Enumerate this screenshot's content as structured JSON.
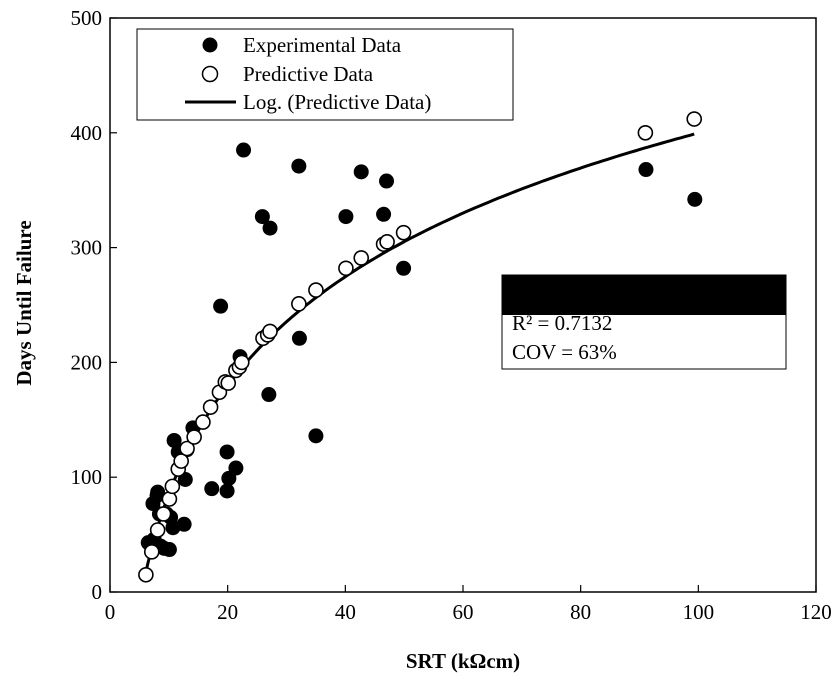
{
  "chart_data": {
    "type": "scatter",
    "xlabel": "SRT (kΩcm)",
    "ylabel": "Days Until Failure",
    "xlim": [
      0,
      120
    ],
    "ylim": [
      0,
      500
    ],
    "x_ticks": [
      0,
      20,
      40,
      60,
      80,
      100,
      120
    ],
    "y_ticks": [
      0,
      100,
      200,
      300,
      400,
      500
    ],
    "grid": false,
    "legend_position": "top-left",
    "series": [
      {
        "name": "Experimental Data",
        "marker": "filled-circle",
        "color": "#000000",
        "points": [
          [
            6.5,
            43
          ],
          [
            7.3,
            77
          ],
          [
            7.5,
            46
          ],
          [
            8.0,
            84
          ],
          [
            8.1,
            87
          ],
          [
            8.4,
            68
          ],
          [
            8.6,
            40
          ],
          [
            9.2,
            38
          ],
          [
            9.6,
            68
          ],
          [
            10.1,
            37
          ],
          [
            10.3,
            65
          ],
          [
            10.7,
            56
          ],
          [
            10.9,
            132
          ],
          [
            11.6,
            122
          ],
          [
            12.6,
            59
          ],
          [
            12.8,
            98
          ],
          [
            13.1,
            124
          ],
          [
            14.1,
            143
          ],
          [
            15.8,
            148
          ],
          [
            17.3,
            90
          ],
          [
            18.8,
            249
          ],
          [
            19.9,
            122
          ],
          [
            19.9,
            88
          ],
          [
            20.2,
            99
          ],
          [
            21.4,
            108
          ],
          [
            22.1,
            205
          ],
          [
            22.7,
            385
          ],
          [
            25.9,
            327
          ],
          [
            27.0,
            172
          ],
          [
            27.2,
            317
          ],
          [
            32.1,
            371
          ],
          [
            32.2,
            221
          ],
          [
            35.0,
            136
          ],
          [
            40.1,
            327
          ],
          [
            42.7,
            366
          ],
          [
            46.5,
            329
          ],
          [
            47.0,
            358
          ],
          [
            49.9,
            282
          ],
          [
            91.1,
            368
          ],
          [
            99.4,
            342
          ]
        ]
      },
      {
        "name": "Predictive Data",
        "marker": "open-circle",
        "color": "#000000",
        "points": [
          [
            6.1,
            15
          ],
          [
            7.1,
            35
          ],
          [
            8.1,
            54
          ],
          [
            9.1,
            68
          ],
          [
            10.1,
            81
          ],
          [
            10.6,
            92
          ],
          [
            11.6,
            107
          ],
          [
            12.1,
            114
          ],
          [
            13.1,
            125
          ],
          [
            14.3,
            135
          ],
          [
            15.8,
            148
          ],
          [
            17.1,
            161
          ],
          [
            18.6,
            174
          ],
          [
            19.6,
            183
          ],
          [
            20.1,
            182
          ],
          [
            21.4,
            193
          ],
          [
            22.0,
            196
          ],
          [
            22.4,
            200
          ],
          [
            26.0,
            221
          ],
          [
            26.8,
            224
          ],
          [
            27.2,
            227
          ],
          [
            32.1,
            251
          ],
          [
            35.0,
            263
          ],
          [
            40.1,
            282
          ],
          [
            42.7,
            291
          ],
          [
            46.5,
            303
          ],
          [
            47.1,
            305
          ],
          [
            49.9,
            313
          ],
          [
            91.0,
            400
          ],
          [
            99.3,
            412
          ]
        ]
      },
      {
        "name": "Log. (Predictive Data)",
        "kind": "trendline",
        "color": "#000000",
        "a": 136.55,
        "b": -229.05,
        "x_range": [
          6.1,
          99.3
        ]
      }
    ],
    "annotations": [
      "R² = 0.7132",
      "COV = 63%"
    ]
  }
}
